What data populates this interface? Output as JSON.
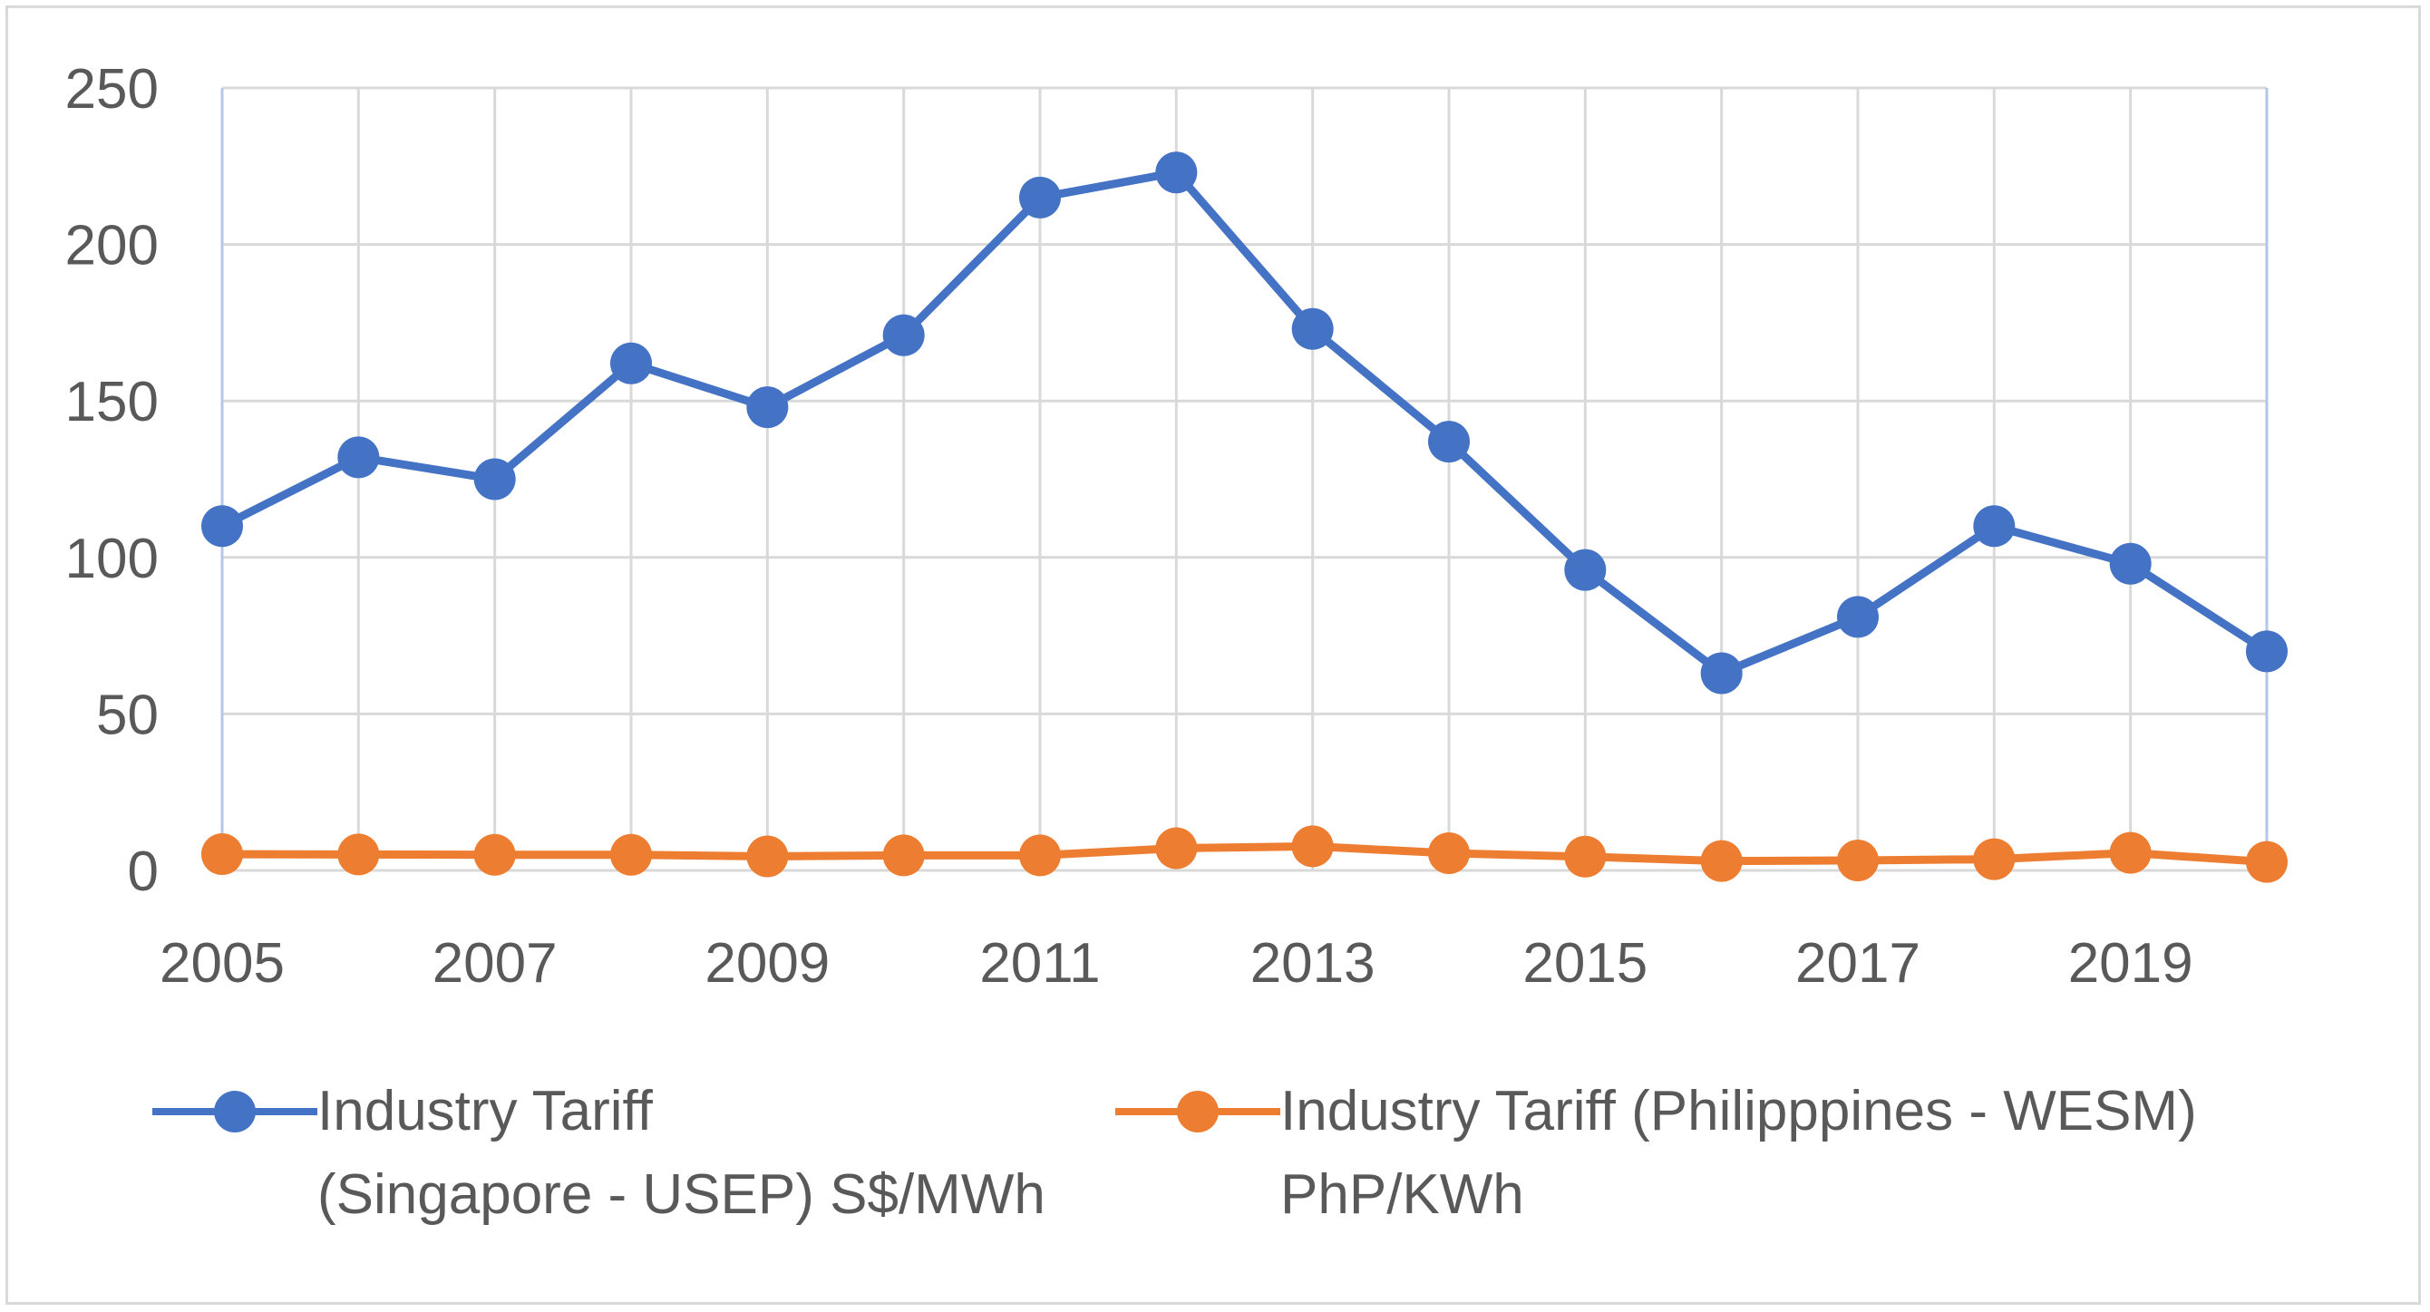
{
  "chart_data": {
    "type": "line",
    "title": "",
    "xlabel": "",
    "ylabel": "",
    "x": [
      2005,
      2006,
      2007,
      2008,
      2009,
      2010,
      2011,
      2012,
      2013,
      2014,
      2015,
      2016,
      2017,
      2018,
      2019,
      2020
    ],
    "x_tick_labels": [
      "2005",
      "2007",
      "2009",
      "2011",
      "2013",
      "2015",
      "2017",
      "2019"
    ],
    "y_tick_labels": [
      "0",
      "50",
      "100",
      "150",
      "200",
      "250"
    ],
    "ylim": [
      0,
      250
    ],
    "grid": true,
    "legend_position": "bottom",
    "series": [
      {
        "name": "Industry Tariff (Singapore - USEP) S$/MWh",
        "label_line1": "Industry Tariff",
        "label_line2": "(Singapore - USEP) S$/MWh",
        "color": "#4472C4",
        "values": [
          110,
          132,
          125,
          162,
          148,
          171,
          215,
          223,
          173,
          137,
          96,
          63,
          81,
          110,
          98,
          70
        ]
      },
      {
        "name": "Industry Tariff (Philipppines - WESM) PhP/KWh",
        "label_line1": "Industry Tariff (Philipppines - WESM)",
        "label_line2": "PhP/KWh",
        "color": "#ED7D31",
        "values": [
          5.2,
          5.1,
          5.0,
          5.0,
          4.5,
          4.8,
          4.8,
          7.1,
          7.7,
          5.5,
          4.4,
          3.0,
          3.2,
          3.6,
          5.6,
          2.7
        ]
      }
    ]
  }
}
